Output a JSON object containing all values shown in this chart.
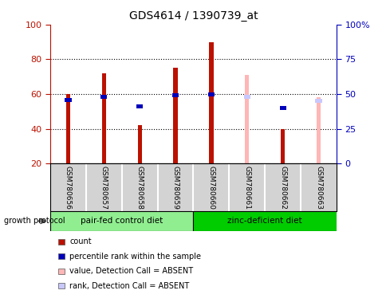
{
  "title": "GDS4614 / 1390739_at",
  "samples": [
    "GSM780656",
    "GSM780657",
    "GSM780658",
    "GSM780659",
    "GSM780660",
    "GSM780661",
    "GSM780662",
    "GSM780663"
  ],
  "count_values": [
    60,
    72,
    42,
    75,
    90,
    null,
    40,
    null
  ],
  "rank_values": [
    46,
    48,
    41,
    49,
    50,
    null,
    40,
    null
  ],
  "absent_value_bars": [
    null,
    null,
    null,
    null,
    null,
    71,
    null,
    58
  ],
  "absent_rank_bars": [
    null,
    null,
    null,
    null,
    null,
    48,
    null,
    45
  ],
  "absent_flags": [
    false,
    false,
    false,
    false,
    false,
    true,
    false,
    true
  ],
  "group1_label": "pair-fed control diet",
  "group1_color": "#90EE90",
  "group1_range": [
    0,
    3
  ],
  "group2_label": "zinc-deficient diet",
  "group2_color": "#00CC00",
  "group2_range": [
    4,
    7
  ],
  "ylim_left": [
    20,
    100
  ],
  "ylim_right": [
    0,
    100
  ],
  "yticks_left": [
    20,
    40,
    60,
    80,
    100
  ],
  "yticks_right": [
    0,
    25,
    50,
    75,
    100
  ],
  "yticklabels_right": [
    "0",
    "25",
    "50",
    "75",
    "100%"
  ],
  "count_color": "#BB1100",
  "rank_color": "#0000BB",
  "absent_value_color": "#FFB6B6",
  "absent_rank_color": "#C8C8FF",
  "bg_color": "#D3D3D3",
  "growth_protocol_label": "growth protocol",
  "legend_items": [
    {
      "color": "#BB1100",
      "label": "count"
    },
    {
      "color": "#0000BB",
      "label": "percentile rank within the sample"
    },
    {
      "color": "#FFB6B6",
      "label": "value, Detection Call = ABSENT"
    },
    {
      "color": "#C8C8FF",
      "label": "rank, Detection Call = ABSENT"
    }
  ]
}
